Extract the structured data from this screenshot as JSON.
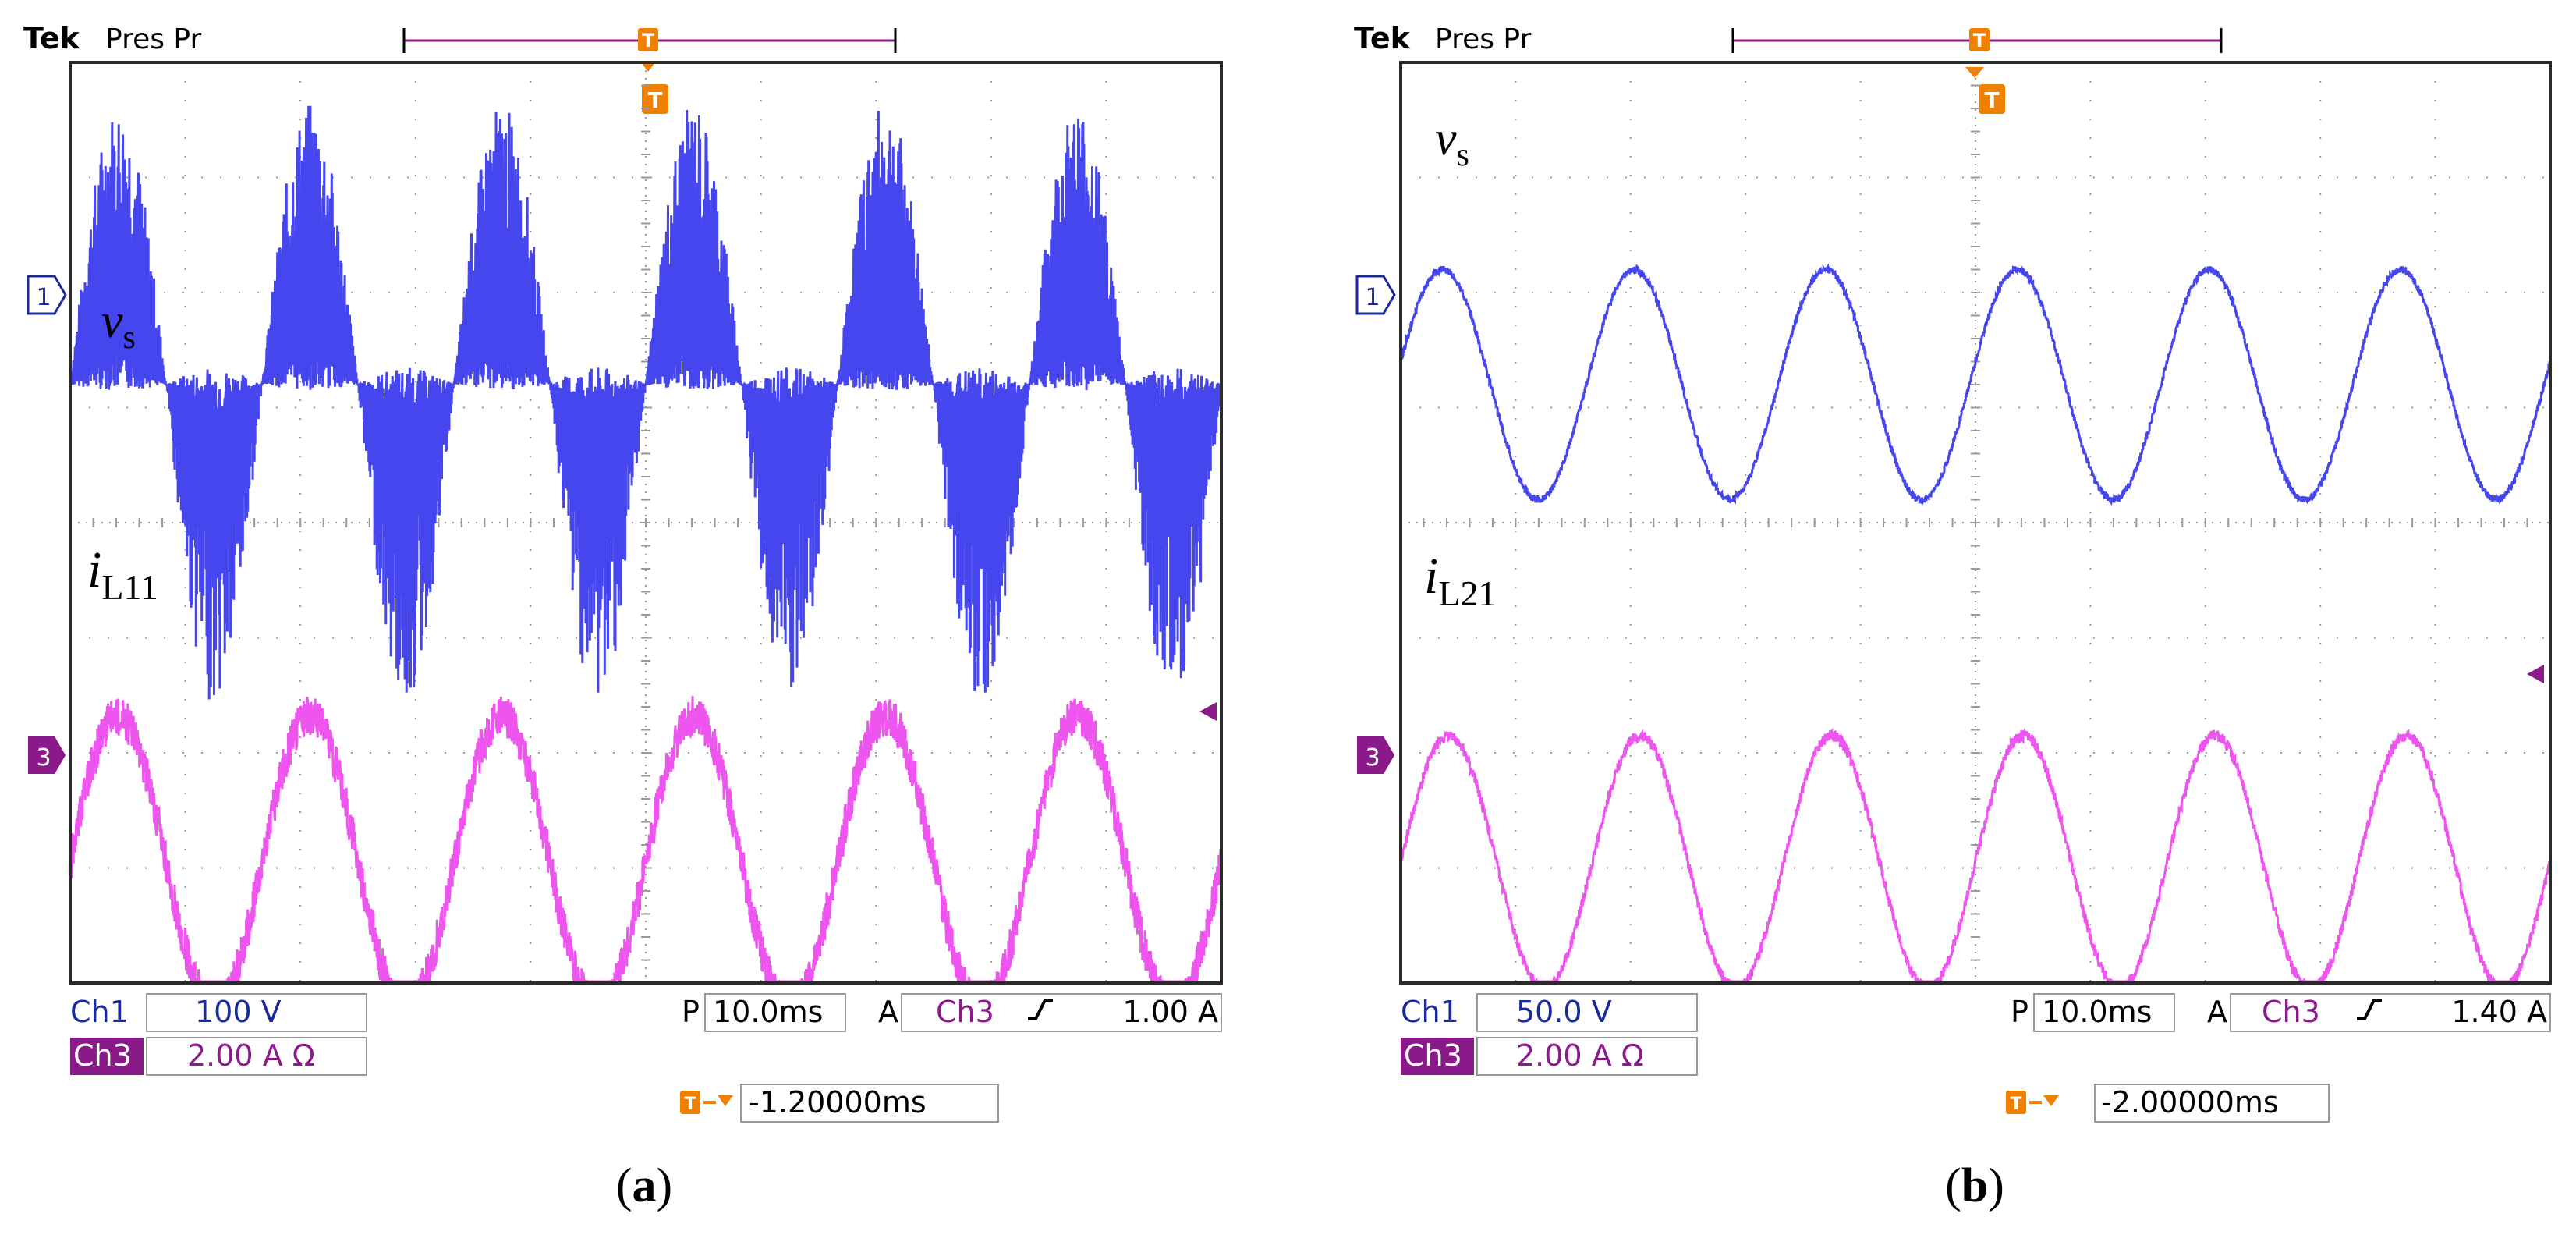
{
  "panels": [
    {
      "brand": "Tek",
      "state": "Pres Pr",
      "trace1_label": "v",
      "trace1_sub": "s",
      "trace3_label": "i",
      "trace3_sub": "L11",
      "ch1_name": "Ch1",
      "ch1_scale": "100 V",
      "ch3_name": "Ch3",
      "ch3_scale": "2.00 A Ω",
      "timebase_prefix": "P",
      "timebase": "10.0ms",
      "trigger_mode": "A",
      "trigger_source": "Ch3",
      "trigger_slope": "rising",
      "trigger_level": "1.00 A",
      "trigger_offset": "-1.20000ms",
      "ch1_marker": "1",
      "ch3_marker": "3",
      "trigger_marker": "T",
      "caption_letter": "a"
    },
    {
      "brand": "Tek",
      "state": "Pres Pr",
      "trace1_label": "v",
      "trace1_sub": "s",
      "trace3_label": "i",
      "trace3_sub": "L21",
      "ch1_name": "Ch1",
      "ch1_scale": "50.0 V",
      "ch3_name": "Ch3",
      "ch3_scale": "2.00 A Ω",
      "timebase_prefix": "P",
      "timebase": "10.0ms",
      "trigger_mode": "A",
      "trigger_source": "Ch3",
      "trigger_slope": "rising",
      "trigger_level": "1.40 A",
      "trigger_offset": "-2.00000ms",
      "ch1_marker": "1",
      "ch3_marker": "3",
      "trigger_marker": "T",
      "caption_letter": "b"
    }
  ],
  "colors": {
    "ch1": "#4646ee",
    "ch3": "#ee55ee",
    "ch3_marker": "#8a1a8a",
    "trigger": "#f08000",
    "grid": "#9a9a9a",
    "frame": "#2a2a2a",
    "ch1_text": "#1a2a9a"
  },
  "chart_data": [
    {
      "type": "line",
      "x_unit": "div",
      "x_range": [
        0,
        10
      ],
      "y_unit": "div",
      "y_range": [
        -4,
        4
      ],
      "grid": true,
      "series": [
        {
          "name": "v_s",
          "channel": 1,
          "offset_div": 1.2,
          "amplitude_div": 0.25,
          "cycles": 6,
          "switching_spikes": true,
          "spike_up_div": 2.0,
          "spike_down_div": 2.3
        },
        {
          "name": "i_L11",
          "channel": 3,
          "offset_div": -2.95,
          "amplitude_div": 1.27,
          "cycles": 6,
          "ripple_div": 0.18
        }
      ]
    },
    {
      "type": "line",
      "x_unit": "div",
      "x_range": [
        0,
        10
      ],
      "y_unit": "div",
      "y_range": [
        -4,
        4
      ],
      "grid": true,
      "series": [
        {
          "name": "v_s",
          "channel": 1,
          "offset_div": 1.2,
          "amplitude_div": 1.0,
          "cycles": 6,
          "switching_spikes": false
        },
        {
          "name": "i_L21",
          "channel": 3,
          "offset_div": -2.95,
          "amplitude_div": 1.1,
          "cycles": 6,
          "ripple_div": 0.05
        }
      ]
    }
  ]
}
